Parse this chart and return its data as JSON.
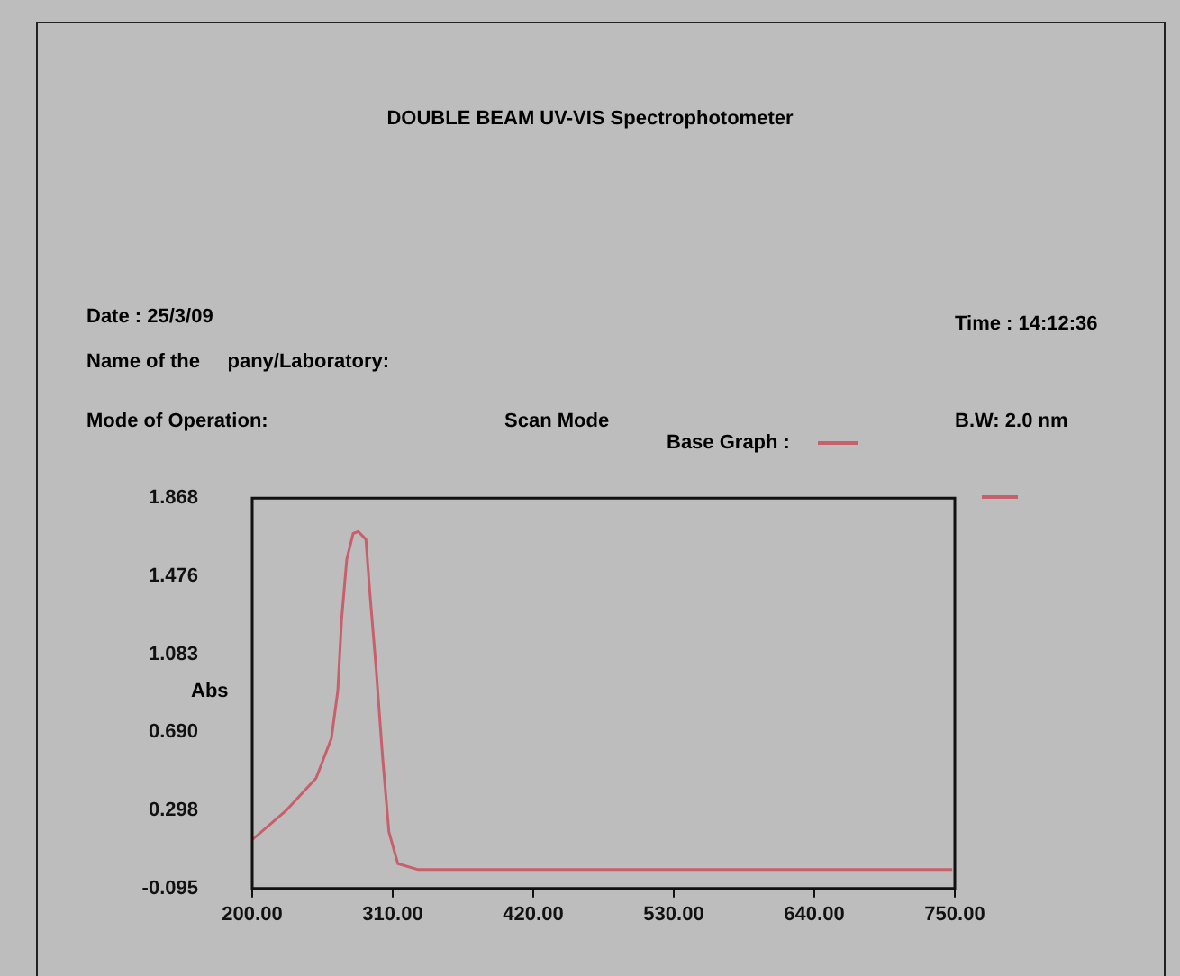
{
  "chart_data": {
    "type": "line",
    "title": "DOUBLE BEAM UV-VIS Spectrophotometer",
    "annotations": [
      "Date : 25/3/09",
      "Time : 14:12:36",
      "Name of the     pany/Laboratory:",
      "Mode of Operation:",
      "Scan Mode",
      "B.W: 2.0 nm"
    ],
    "ylabel": "Abs",
    "x": [
      200,
      227,
      250,
      262,
      267,
      270,
      274,
      279,
      283,
      289,
      292,
      297,
      302,
      307,
      314,
      330,
      400,
      500,
      600,
      700,
      748
    ],
    "series": [
      {
        "name": "Base Graph :",
        "color": "#c8606c",
        "values": [
          0.15,
          0.3,
          0.46,
          0.66,
          0.9,
          1.26,
          1.56,
          1.69,
          1.7,
          1.66,
          1.4,
          1.01,
          0.57,
          0.19,
          0.03,
          0.0,
          0.0,
          0.0,
          0.0,
          0.0,
          0.0
        ]
      }
    ],
    "xlim": [
      200,
      750
    ],
    "xticks": [
      {
        "value": 200,
        "label": "200.00"
      },
      {
        "value": 310,
        "label": "310.00"
      },
      {
        "value": 420,
        "label": "420.00"
      },
      {
        "value": 530,
        "label": "530.00"
      },
      {
        "value": 640,
        "label": "640.00"
      },
      {
        "value": 750,
        "label": "750.00"
      }
    ],
    "ylim": [
      -0.095,
      1.868
    ],
    "yticks": [
      -0.095,
      0.298,
      {
        "value": 0.69,
        "label": "0.690"
      },
      1.083,
      1.476,
      1.868
    ],
    "grid": false,
    "legend": "top",
    "marker": "none",
    "line_style": "solid"
  }
}
